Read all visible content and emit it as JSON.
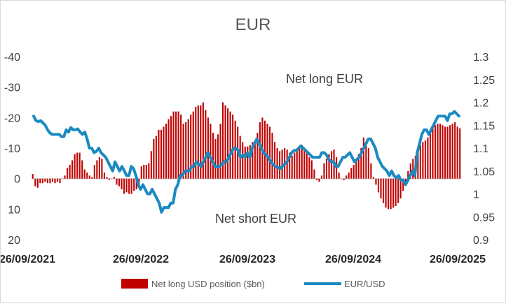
{
  "chart_data": {
    "type": "bar+line",
    "title": "EUR",
    "x_tick_labels": [
      "26/09/2021",
      "26/09/2022",
      "26/09/2023",
      "26/09/2024",
      "26/09/2025"
    ],
    "left_axis": {
      "ticks": [
        -40,
        -30,
        -20,
        -10,
        0,
        10,
        20
      ],
      "tick_labels": [
        "-40",
        "-30",
        "-20",
        "-10",
        "0",
        "10",
        "20"
      ],
      "range": [
        -40,
        20
      ],
      "inverted": true
    },
    "right_axis": {
      "ticks": [
        1.3,
        1.25,
        1.2,
        1.15,
        1.1,
        1.05,
        1,
        0.95,
        0.9
      ],
      "tick_labels": [
        "1.3",
        "1.25",
        "1.2",
        "1.15",
        "1.1",
        "1.05",
        "1",
        "0.95",
        "0.9"
      ],
      "range": [
        0.9,
        1.3
      ]
    },
    "annotations": [
      "Net long EUR",
      "Net short EUR"
    ],
    "legend": {
      "position": "bottom"
    },
    "series": [
      {
        "name": "Net long USD position ($bn)",
        "kind": "bar",
        "axis": "left",
        "color": "#c00000",
        "x_start": "26/09/2021",
        "x_end": "26/09/2025",
        "values": [
          -1.5,
          2.5,
          3.0,
          1.5,
          1.5,
          1.0,
          1.5,
          1.5,
          1.0,
          1.5,
          1.0,
          1.5,
          0.0,
          -1.0,
          -3.5,
          -4.5,
          -6.0,
          -8.0,
          -8.5,
          -8.5,
          -6.0,
          -3.0,
          -2.0,
          -1.0,
          -0.5,
          -4.5,
          -6.0,
          -7.0,
          -6.5,
          -2.0,
          -0.5,
          0.5,
          0.0,
          -0.5,
          2.0,
          2.5,
          3.5,
          5.0,
          4.5,
          5.0,
          5.0,
          4.0,
          3.5,
          3.0,
          -4.0,
          -4.5,
          -4.5,
          -5.0,
          -9.0,
          -13.0,
          -14.0,
          -16.0,
          -16.0,
          -17.0,
          -18.0,
          -19.5,
          -20.5,
          -22.0,
          -22.0,
          -22.0,
          -21.0,
          -18.0,
          -18.5,
          -19.5,
          -21.0,
          -22.0,
          -23.5,
          -24.0,
          -24.0,
          -25.0,
          -22.5,
          -20.0,
          -18.0,
          -15.0,
          -13.0,
          -14.5,
          -18.0,
          -25.0,
          -24.0,
          -23.0,
          -22.0,
          -21.0,
          -19.0,
          -17.0,
          -14.0,
          -12.0,
          -10.5,
          -10.5,
          -11.0,
          -12.0,
          -12.5,
          -15.0,
          -18.5,
          -20.0,
          -19.0,
          -18.0,
          -17.0,
          -15.0,
          -12.0,
          -10.0,
          -9.0,
          -9.5,
          -10.0,
          -9.5,
          -8.5,
          -7.5,
          -8.5,
          -9.5,
          -10.5,
          -11.0,
          -10.0,
          -8.5,
          -7.0,
          -6.0,
          -3.0,
          0.5,
          1.0,
          -1.0,
          -5.0,
          -6.5,
          -8.0,
          -9.0,
          -9.5,
          -7.0,
          -2.0,
          0.0,
          0.5,
          -1.0,
          -2.0,
          -3.5,
          -4.5,
          -6.0,
          -8.0,
          -10.0,
          -13.5,
          -12.0,
          -10.0,
          -5.0,
          -0.5,
          2.0,
          4.5,
          6.5,
          8.0,
          9.5,
          10.0,
          10.0,
          9.5,
          9.0,
          8.0,
          6.5,
          4.0,
          1.0,
          -2.5,
          -5.0,
          -6.5,
          -7.5,
          -9.5,
          -11.0,
          -12.0,
          -12.5,
          -13.5,
          -15.0,
          -16.5,
          -17.5,
          -18.0,
          -18.0,
          -17.5,
          -17.0,
          -17.0,
          -17.5,
          -18.0,
          -18.5,
          -17.0,
          -16.5
        ]
      },
      {
        "name": "EUR/USD",
        "kind": "line",
        "axis": "right",
        "color": "#1a8ac1",
        "x_start": "26/09/2021",
        "x_end": "26/09/2025",
        "values": [
          1.17,
          1.16,
          1.158,
          1.16,
          1.155,
          1.15,
          1.14,
          1.133,
          1.13,
          1.13,
          1.13,
          1.13,
          1.125,
          1.125,
          1.14,
          1.135,
          1.145,
          1.14,
          1.14,
          1.142,
          1.135,
          1.13,
          1.135,
          1.12,
          1.1,
          1.1,
          1.09,
          1.093,
          1.1,
          1.09,
          1.085,
          1.08,
          1.07,
          1.06,
          1.05,
          1.07,
          1.06,
          1.05,
          1.06,
          1.05,
          1.04,
          1.04,
          1.06,
          1.055,
          1.04,
          1.02,
          1.01,
          1.02,
          1.01,
          1.0,
          1.0,
          1.01,
          1.0,
          0.99,
          0.98,
          0.96,
          0.97,
          0.97,
          0.97,
          0.98,
          0.98,
          1.01,
          1.02,
          1.04,
          1.04,
          1.05,
          1.05,
          1.05,
          1.06,
          1.06,
          1.07,
          1.065,
          1.06,
          1.07,
          1.08,
          1.09,
          1.08,
          1.07,
          1.06,
          1.06,
          1.06,
          1.065,
          1.07,
          1.07,
          1.08,
          1.09,
          1.1,
          1.1,
          1.095,
          1.08,
          1.085,
          1.08,
          1.09,
          1.08,
          1.1,
          1.11,
          1.12,
          1.11,
          1.1,
          1.09,
          1.085,
          1.08,
          1.07,
          1.065,
          1.06,
          1.058,
          1.055,
          1.06,
          1.065,
          1.07,
          1.08,
          1.09,
          1.095,
          1.095,
          1.1,
          1.105,
          1.1,
          1.095,
          1.09,
          1.085,
          1.08,
          1.08,
          1.08,
          1.08,
          1.09,
          1.09,
          1.085,
          1.075,
          1.07,
          1.07,
          1.06,
          1.06,
          1.07,
          1.08,
          1.08,
          1.085,
          1.09,
          1.08,
          1.07,
          1.075,
          1.08,
          1.09,
          1.1,
          1.11,
          1.12,
          1.12,
          1.11,
          1.1,
          1.08,
          1.07,
          1.06,
          1.055,
          1.05,
          1.04,
          1.05,
          1.04,
          1.035,
          1.04,
          1.03,
          1.03,
          1.02,
          1.03,
          1.04,
          1.05,
          1.04,
          1.09,
          1.11,
          1.13,
          1.14,
          1.14,
          1.13,
          1.14,
          1.15,
          1.16,
          1.17,
          1.17,
          1.17,
          1.17,
          1.16,
          1.175,
          1.175,
          1.18,
          1.175,
          1.17
        ]
      }
    ]
  }
}
